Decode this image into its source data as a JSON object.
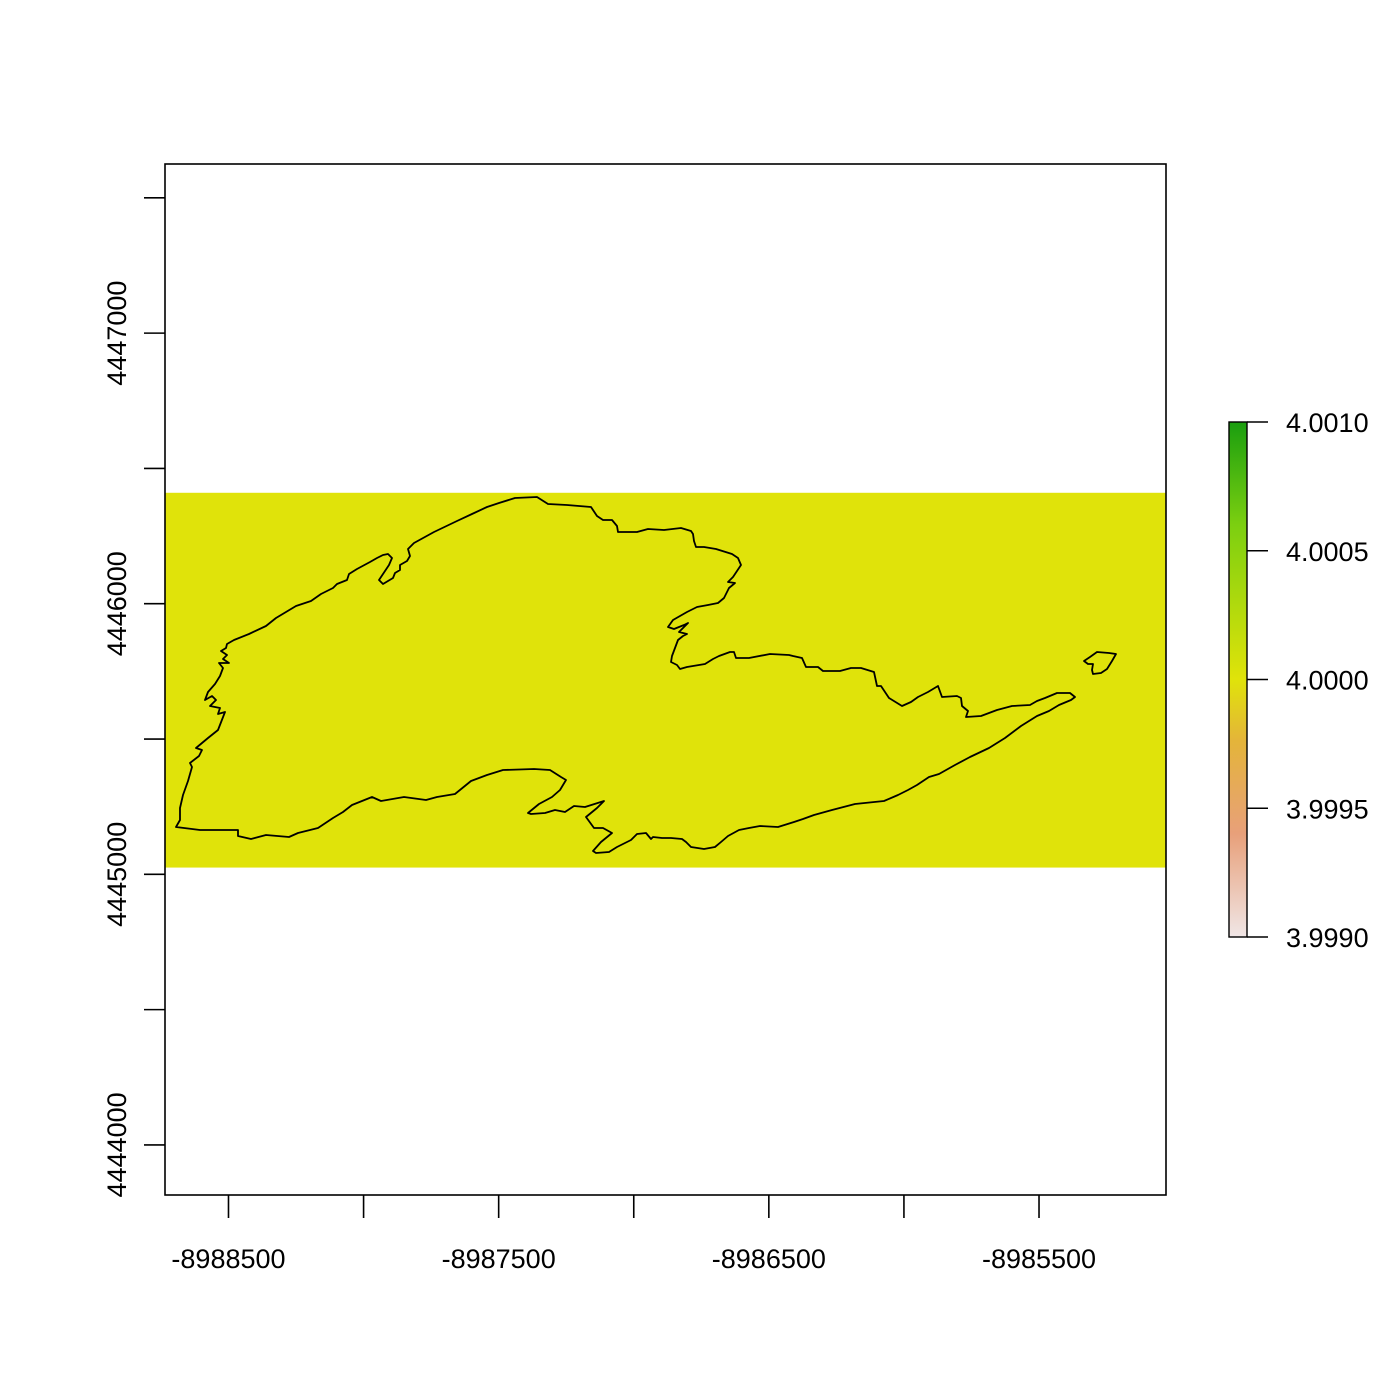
{
  "map": {
    "x_ticks": [
      "-8988500",
      "-8987500",
      "-8986500",
      "-8985500"
    ],
    "y_ticks": [
      "4444000",
      "4445000",
      "4446000",
      "4447000"
    ],
    "raster_color": "#E0E30A",
    "outline_color": "#000000"
  },
  "legend": {
    "ticks": [
      "4.0010",
      "4.0005",
      "4.0000",
      "3.9995",
      "3.9990"
    ],
    "gradient_colors": [
      "#1a9e0f",
      "#7ccf10",
      "#e0e30a",
      "#e4b43a",
      "#e8a07a",
      "#f0e6e6"
    ]
  },
  "chart_data": {
    "type": "heatmap",
    "xlim": [
      -8988735,
      -8985030
    ],
    "ylim": [
      4443815,
      4447625
    ],
    "raster_band": {
      "ymin": 4445025,
      "ymax": 4446410,
      "value": 4.0
    },
    "x_major_ticks": [
      -8988500,
      -8987500,
      -8986500,
      -8985500
    ],
    "x_minor_ticks": [
      -8988000,
      -8987000,
      -8986000
    ],
    "y_major_ticks": [
      4444000,
      4445000,
      4446000,
      4447000
    ],
    "y_minor_ticks": [
      4444500,
      4445500,
      4446500,
      4447500
    ],
    "legend_range": [
      3.999,
      4.001
    ],
    "legend_ticks": [
      3.999,
      3.9995,
      4.0,
      4.0005,
      4.001
    ]
  }
}
